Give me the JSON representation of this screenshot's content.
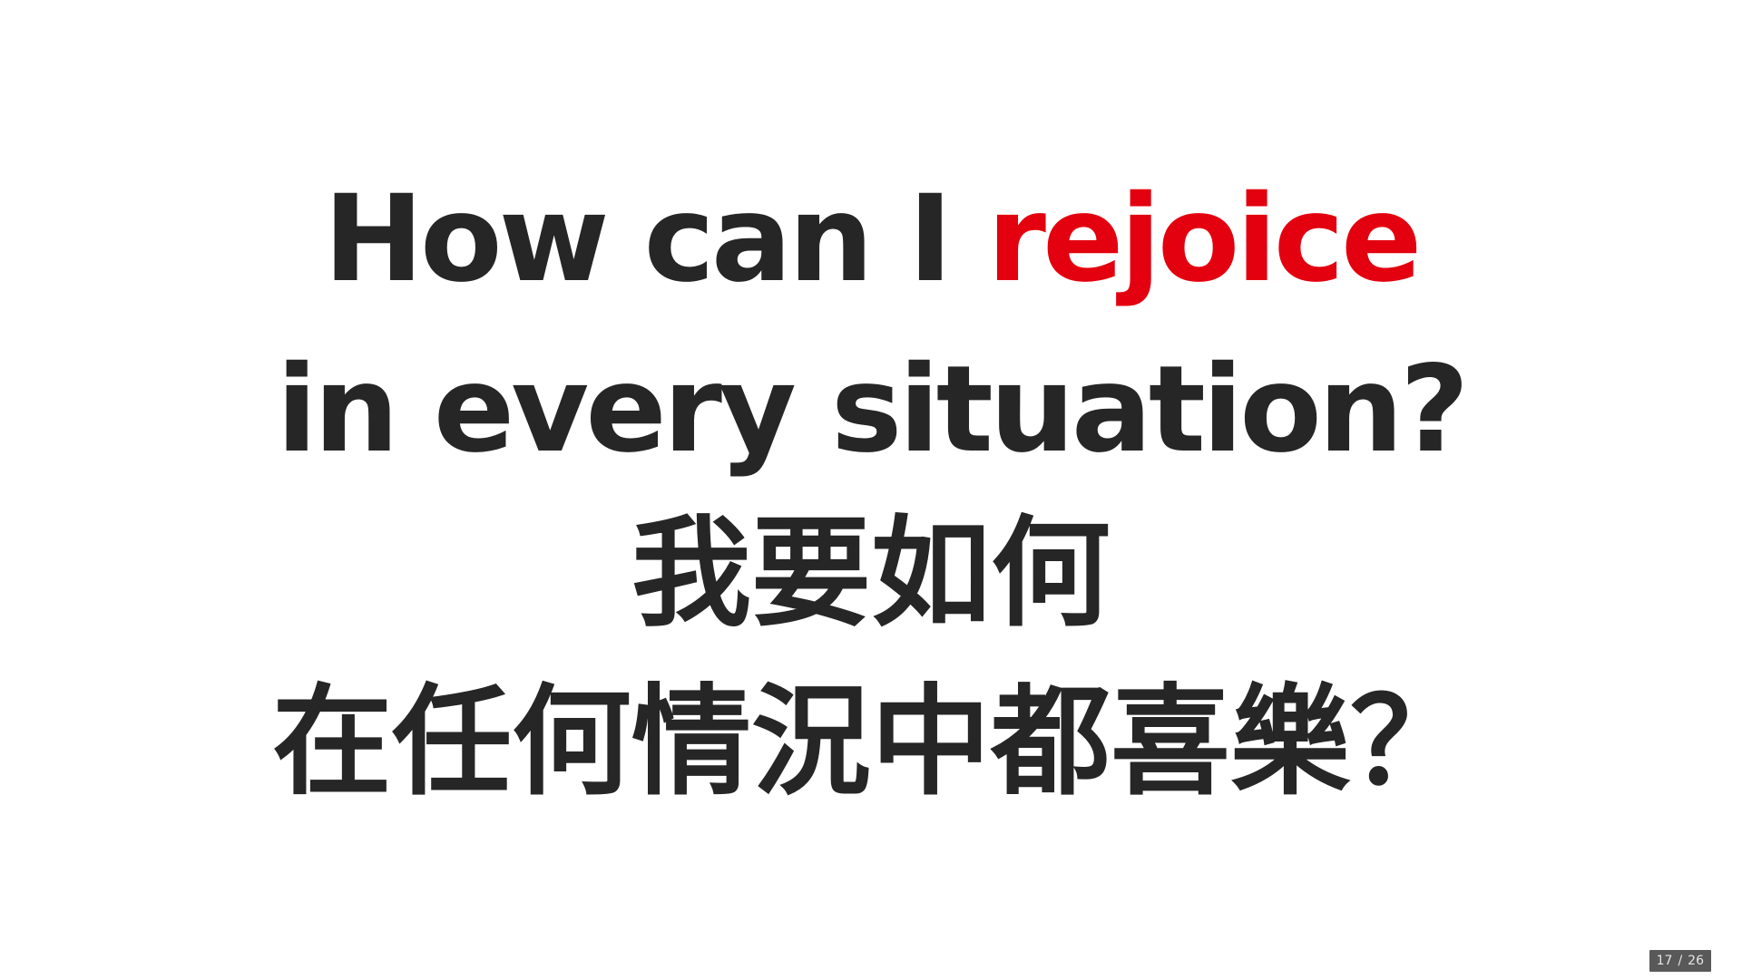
{
  "slide": {
    "line1": {
      "before": "How can I ",
      "highlight": "rejoice"
    },
    "line2": "in every situation?",
    "line3": "我要如何",
    "line4": "在任何情況中都喜樂？"
  },
  "counter": {
    "current": "17",
    "separator": "/",
    "total": "26"
  },
  "colors": {
    "text": "#262626",
    "highlight": "#e3000f",
    "background": "#ffffff"
  }
}
